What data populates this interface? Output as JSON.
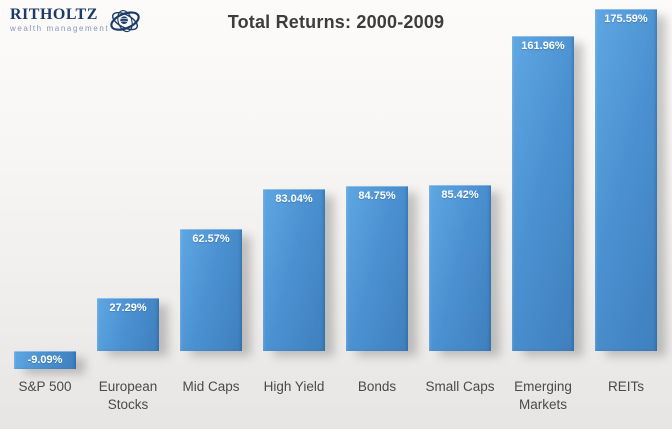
{
  "logo": {
    "brand": "RITHOLTZ",
    "tagline": "wealth management"
  },
  "colors": {
    "brand_navy": "#1c3a66",
    "tagline_blue_gray": "#8699b4",
    "title_text": "#3d3d3d",
    "category_text": "#4a4a4a",
    "bar_blue": "#4a90d0",
    "bar_gradient_light": "#5fa7e3",
    "bar_gradient_dark": "#3f7fbd",
    "value_label": "#ffffff",
    "background_top": "#fcfbfa",
    "background_bottom": "#e6e5e3"
  },
  "chart_data": {
    "type": "bar",
    "title": "Total Returns: 2000-2009",
    "categories": [
      "S&P 500",
      "European Stocks",
      "Mid Caps",
      "High Yield",
      "Bonds",
      "Small Caps",
      "Emerging Markets",
      "REITs"
    ],
    "values": [
      -9.09,
      27.29,
      62.57,
      83.04,
      84.75,
      85.42,
      161.96,
      175.59
    ],
    "value_labels": [
      "-9.09%",
      "27.29%",
      "62.57%",
      "83.04%",
      "84.75%",
      "85.42%",
      "161.96%",
      "175.59%"
    ],
    "xlabel": "",
    "ylabel": "",
    "ylim": [
      -20,
      185
    ],
    "grid": false,
    "legend": false,
    "value_label_position": "inside-top",
    "negative_label_position": "inside-center"
  }
}
